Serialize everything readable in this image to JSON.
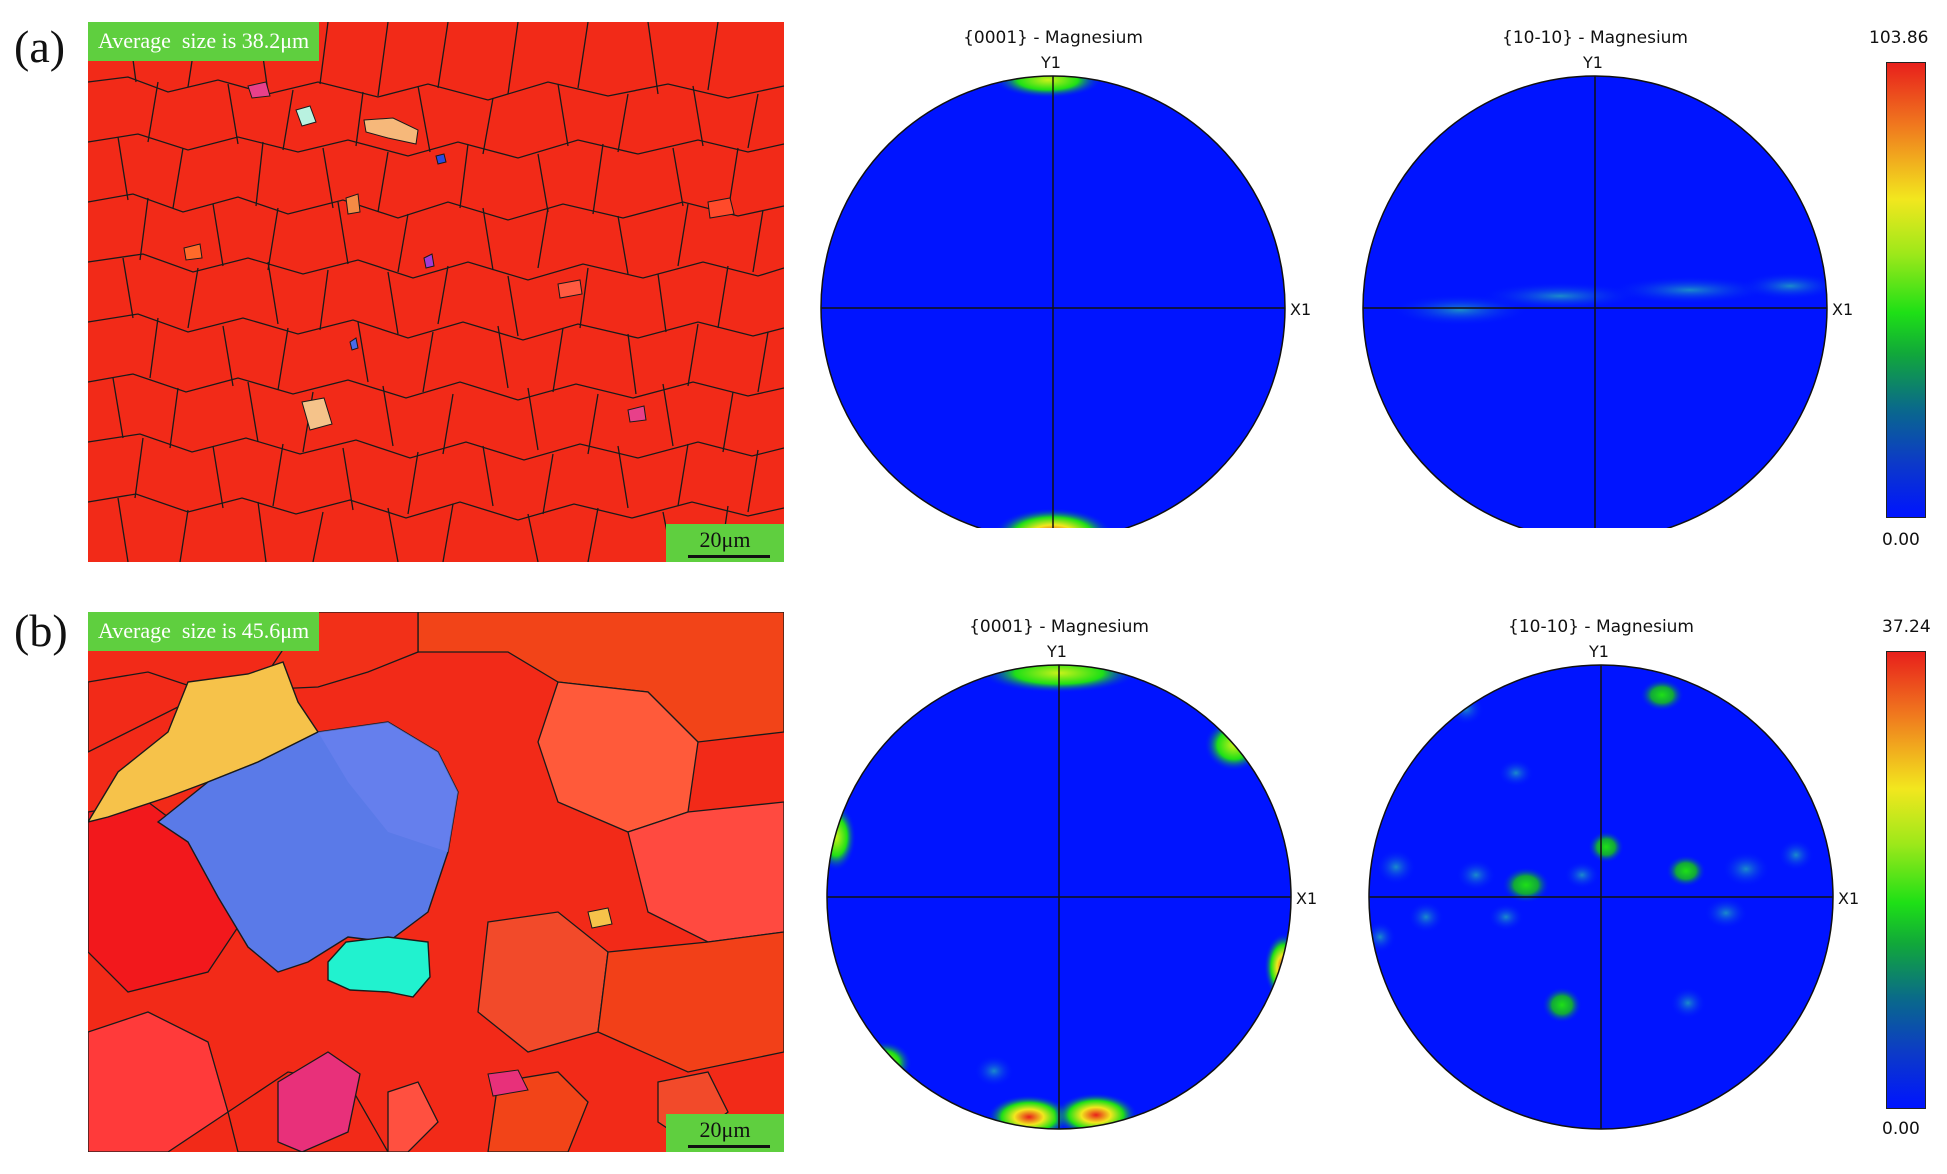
{
  "panels": [
    {
      "label": "(a)",
      "average_size_text": "Average  size is 38.2μm",
      "scale_bar_text": "20μm",
      "pole_figures": [
        {
          "title": "{0001} - Magnesium",
          "y_axis": "Y1",
          "x_axis": "X1"
        },
        {
          "title": "{10-10} - Magnesium",
          "y_axis": "Y1",
          "x_axis": "X1"
        }
      ],
      "colorbar": {
        "max": "103.86",
        "min": "0.00"
      }
    },
    {
      "label": "(b)",
      "average_size_text": "Average  size is 45.6μm",
      "scale_bar_text": "20μm",
      "pole_figures": [
        {
          "title": "{0001} - Magnesium",
          "y_axis": "Y1",
          "x_axis": "X1"
        },
        {
          "title": "{10-10} - Magnesium",
          "y_axis": "Y1",
          "x_axis": "X1"
        }
      ],
      "colorbar": {
        "max": "37.24",
        "min": "0.00"
      }
    }
  ],
  "colors": {
    "grain_red": "#f22a18",
    "pole_blue": "#0014ff",
    "label_green": "#5fcf3f"
  }
}
